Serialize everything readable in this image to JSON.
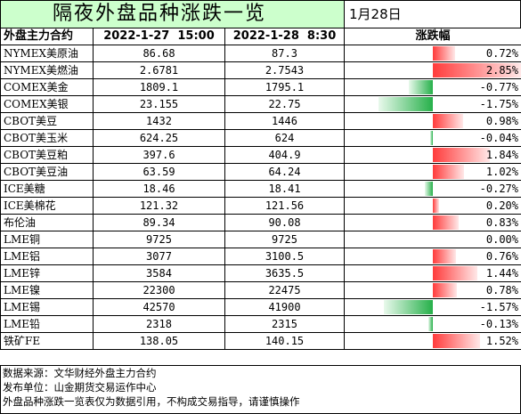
{
  "title": "隔夜外盘品种涨跌一览",
  "date": "1月28日",
  "columns": [
    "外盘主力合约",
    "2022-1-27  15:00",
    "2022-1-28  8:30",
    "涨跌幅"
  ],
  "colors": {
    "title_bg": "#ccffcc",
    "up": "#ff3b3b",
    "down": "#26b04a"
  },
  "rows": [
    {
      "name": "NYMEX美原油",
      "prev": "86.68",
      "curr": "87.3",
      "change": "0.72%",
      "pct": 0.72
    },
    {
      "name": "NYMEX美燃油",
      "prev": "2.6781",
      "curr": "2.7543",
      "change": "2.85%",
      "pct": 2.85
    },
    {
      "name": "COMEX美金",
      "prev": "1809.1",
      "curr": "1795.1",
      "change": "-0.77%",
      "pct": -0.77
    },
    {
      "name": "COMEX美银",
      "prev": "23.155",
      "curr": "22.75",
      "change": "-1.75%",
      "pct": -1.75
    },
    {
      "name": "CBOT美豆",
      "prev": "1432",
      "curr": "1446",
      "change": "0.98%",
      "pct": 0.98
    },
    {
      "name": "CBOT美玉米",
      "prev": "624.25",
      "curr": "624",
      "change": "-0.04%",
      "pct": -0.04
    },
    {
      "name": "CBOT美豆粕",
      "prev": "397.6",
      "curr": "404.9",
      "change": "1.84%",
      "pct": 1.84
    },
    {
      "name": "CBOT美豆油",
      "prev": "63.59",
      "curr": "64.24",
      "change": "1.02%",
      "pct": 1.02
    },
    {
      "name": "ICE美糖",
      "prev": "18.46",
      "curr": "18.41",
      "change": "-0.27%",
      "pct": -0.27
    },
    {
      "name": "ICE美棉花",
      "prev": "121.32",
      "curr": "121.56",
      "change": "0.20%",
      "pct": 0.2
    },
    {
      "name": "布伦油",
      "prev": "89.34",
      "curr": "90.08",
      "change": "0.83%",
      "pct": 0.83
    },
    {
      "name": "LME铜",
      "prev": "9725",
      "curr": "9725",
      "change": "0.00%",
      "pct": 0.0
    },
    {
      "name": "LME铝",
      "prev": "3077",
      "curr": "3100.5",
      "change": "0.76%",
      "pct": 0.76
    },
    {
      "name": "LME锌",
      "prev": "3584",
      "curr": "3635.5",
      "change": "1.44%",
      "pct": 1.44
    },
    {
      "name": "LME镍",
      "prev": "22300",
      "curr": "22475",
      "change": "0.78%",
      "pct": 0.78
    },
    {
      "name": "LME锡",
      "prev": "42570",
      "curr": "41900",
      "change": "-1.57%",
      "pct": -1.57
    },
    {
      "name": "LME铅",
      "prev": "2318",
      "curr": "2315",
      "change": "-0.13%",
      "pct": -0.13
    },
    {
      "name": "铁矿FE",
      "prev": "138.05",
      "curr": "140.15",
      "change": "1.52%",
      "pct": 1.52
    }
  ],
  "footer": [
    "数据来源：文华财经外盘主力合约",
    "发布单位：山金期货交易运作中心",
    "外盘品种涨跌一览表仅为数据引用，不构成交易指导，请谨慎操作"
  ]
}
